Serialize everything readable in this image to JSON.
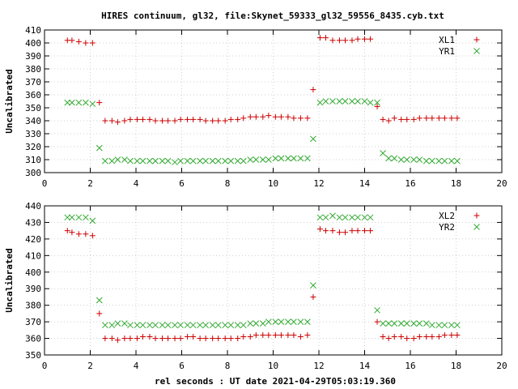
{
  "title": "HIRES continuum, gl32, file:Skynet_59333_gl32_59556_8435.cyb.txt",
  "xlabel": "rel seconds : UT date 2021-04-29T05:03:19.360",
  "colors": {
    "plus": "#cc0000",
    "cross": "#33aa33"
  },
  "chart_data": [
    {
      "type": "scatter",
      "ylabel": "Uncalibrated",
      "xlim": [
        0,
        20
      ],
      "ylim": [
        300,
        410
      ],
      "xticks": [
        0,
        2,
        4,
        6,
        8,
        10,
        12,
        14,
        16,
        18,
        20
      ],
      "yticks": [
        300,
        310,
        320,
        330,
        340,
        350,
        360,
        370,
        380,
        390,
        400,
        410
      ],
      "grid": true,
      "legend_position": "top-right",
      "series": [
        {
          "name": "XL1",
          "marker": "plus",
          "x": [
            1.0,
            1.2,
            1.5,
            1.8,
            2.1,
            2.4,
            2.65,
            2.95,
            3.2,
            3.5,
            3.75,
            4.05,
            4.3,
            4.6,
            4.85,
            5.15,
            5.4,
            5.7,
            5.95,
            6.25,
            6.5,
            6.8,
            7.05,
            7.35,
            7.6,
            7.9,
            8.15,
            8.45,
            8.7,
            9.0,
            9.25,
            9.55,
            9.8,
            10.1,
            10.35,
            10.65,
            10.9,
            11.2,
            11.5,
            11.75,
            12.05,
            12.3,
            12.6,
            12.9,
            13.15,
            13.45,
            13.7,
            14.0,
            14.25,
            14.55,
            14.8,
            15.05,
            15.3,
            15.6,
            15.85,
            16.15,
            16.4,
            16.7,
            16.95,
            17.25,
            17.5,
            17.8,
            18.05
          ],
          "y": [
            402,
            402,
            401,
            400,
            400,
            354,
            340,
            340,
            339,
            340,
            341,
            341,
            341,
            341,
            340,
            340,
            340,
            340,
            341,
            341,
            341,
            341,
            340,
            340,
            340,
            340,
            341,
            341,
            342,
            343,
            343,
            343,
            344,
            343,
            343,
            343,
            342,
            342,
            342,
            364,
            404,
            404,
            402,
            402,
            402,
            402,
            403,
            403,
            403,
            351,
            341,
            340,
            342,
            341,
            341,
            341,
            342,
            342,
            342,
            342,
            342,
            342,
            342
          ]
        },
        {
          "name": "YR1",
          "marker": "cross",
          "x": [
            1.0,
            1.2,
            1.5,
            1.8,
            2.1,
            2.4,
            2.65,
            2.95,
            3.2,
            3.5,
            3.75,
            4.05,
            4.3,
            4.6,
            4.85,
            5.15,
            5.4,
            5.7,
            5.95,
            6.25,
            6.5,
            6.8,
            7.05,
            7.35,
            7.6,
            7.9,
            8.15,
            8.45,
            8.7,
            9.0,
            9.25,
            9.55,
            9.8,
            10.1,
            10.35,
            10.65,
            10.9,
            11.2,
            11.5,
            11.75,
            12.05,
            12.3,
            12.6,
            12.9,
            13.15,
            13.45,
            13.7,
            14.0,
            14.25,
            14.55,
            14.8,
            15.05,
            15.3,
            15.6,
            15.85,
            16.15,
            16.4,
            16.7,
            16.95,
            17.25,
            17.5,
            17.8,
            18.05
          ],
          "y": [
            354,
            354,
            354,
            354,
            353,
            319,
            309,
            309,
            310,
            310,
            309,
            309,
            309,
            309,
            309,
            309,
            309,
            308,
            309,
            309,
            309,
            309,
            309,
            309,
            309,
            309,
            309,
            309,
            309,
            310,
            310,
            310,
            310,
            311,
            311,
            311,
            311,
            311,
            311,
            326,
            354,
            355,
            355,
            355,
            355,
            355,
            355,
            355,
            354,
            354,
            315,
            311,
            311,
            310,
            310,
            310,
            310,
            309,
            309,
            309,
            309,
            309,
            309
          ]
        }
      ]
    },
    {
      "type": "scatter",
      "ylabel": "Uncalibrated",
      "xlim": [
        0,
        20
      ],
      "ylim": [
        350,
        440
      ],
      "xticks": [
        0,
        2,
        4,
        6,
        8,
        10,
        12,
        14,
        16,
        18,
        20
      ],
      "yticks": [
        350,
        360,
        370,
        380,
        390,
        400,
        410,
        420,
        430,
        440
      ],
      "grid": true,
      "legend_position": "top-right",
      "series": [
        {
          "name": "XL2",
          "marker": "plus",
          "x": [
            1.0,
            1.2,
            1.5,
            1.8,
            2.1,
            2.4,
            2.65,
            2.95,
            3.2,
            3.5,
            3.75,
            4.05,
            4.3,
            4.6,
            4.85,
            5.15,
            5.4,
            5.7,
            5.95,
            6.25,
            6.5,
            6.8,
            7.05,
            7.35,
            7.6,
            7.9,
            8.15,
            8.45,
            8.7,
            9.0,
            9.25,
            9.55,
            9.8,
            10.1,
            10.35,
            10.65,
            10.9,
            11.2,
            11.5,
            11.75,
            12.05,
            12.3,
            12.6,
            12.9,
            13.15,
            13.45,
            13.7,
            14.0,
            14.25,
            14.55,
            14.8,
            15.05,
            15.3,
            15.6,
            15.85,
            16.15,
            16.4,
            16.7,
            16.95,
            17.25,
            17.5,
            17.8,
            18.05
          ],
          "y": [
            425,
            424,
            423,
            423,
            422,
            375,
            360,
            360,
            359,
            360,
            360,
            360,
            361,
            361,
            360,
            360,
            360,
            360,
            360,
            361,
            361,
            360,
            360,
            360,
            360,
            360,
            360,
            360,
            361,
            361,
            362,
            362,
            362,
            362,
            362,
            362,
            362,
            361,
            362,
            385,
            426,
            425,
            425,
            424,
            424,
            425,
            425,
            425,
            425,
            370,
            361,
            360,
            361,
            361,
            360,
            360,
            361,
            361,
            361,
            361,
            362,
            362,
            362
          ]
        },
        {
          "name": "YR2",
          "marker": "cross",
          "x": [
            1.0,
            1.2,
            1.5,
            1.8,
            2.1,
            2.4,
            2.65,
            2.95,
            3.2,
            3.5,
            3.75,
            4.05,
            4.3,
            4.6,
            4.85,
            5.15,
            5.4,
            5.7,
            5.95,
            6.25,
            6.5,
            6.8,
            7.05,
            7.35,
            7.6,
            7.9,
            8.15,
            8.45,
            8.7,
            9.0,
            9.25,
            9.55,
            9.8,
            10.1,
            10.35,
            10.65,
            10.9,
            11.2,
            11.5,
            11.75,
            12.05,
            12.3,
            12.6,
            12.9,
            13.15,
            13.45,
            13.7,
            14.0,
            14.25,
            14.55,
            14.8,
            15.05,
            15.3,
            15.6,
            15.85,
            16.15,
            16.4,
            16.7,
            16.95,
            17.25,
            17.5,
            17.8,
            18.05
          ],
          "y": [
            433,
            433,
            433,
            433,
            431,
            383,
            368,
            368,
            369,
            369,
            368,
            368,
            368,
            368,
            368,
            368,
            368,
            368,
            368,
            368,
            368,
            368,
            368,
            368,
            368,
            368,
            368,
            368,
            368,
            369,
            369,
            369,
            370,
            370,
            370,
            370,
            370,
            370,
            370,
            392,
            433,
            433,
            434,
            433,
            433,
            433,
            433,
            433,
            433,
            377,
            369,
            369,
            369,
            369,
            369,
            369,
            369,
            369,
            368,
            368,
            368,
            368,
            368
          ]
        }
      ]
    }
  ]
}
